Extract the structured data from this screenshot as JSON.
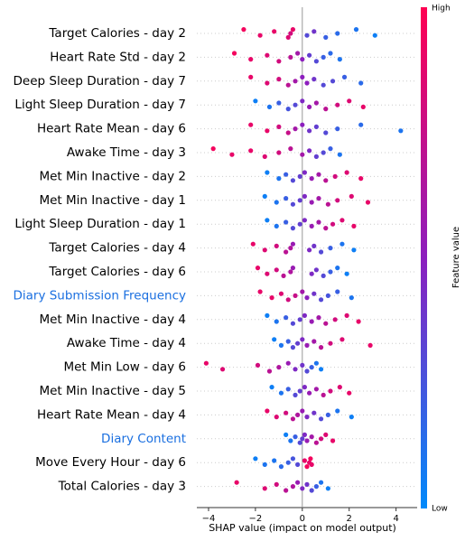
{
  "chart_data": {
    "type": "beeswarm",
    "xlabel": "SHAP value (impact on model output)",
    "colorbar_label": "Feature value",
    "colorbar_high": "High",
    "colorbar_low": "Low",
    "xlim": [
      -4.5,
      4.9
    ],
    "xticks": [
      {
        "value": -4,
        "label": "−4"
      },
      {
        "value": -2,
        "label": "−2"
      },
      0,
      2,
      4
    ],
    "series": [
      {
        "name": "Target Calories - day 2",
        "label_color": "#000000",
        "values": [
          -2.5,
          -1.8,
          -1.2,
          -0.6,
          -0.5,
          -0.4,
          0.2,
          0.5,
          1.0,
          1.5,
          2.3,
          3.1
        ],
        "feature_values": [
          0.95,
          0.9,
          0.9,
          0.85,
          0.8,
          0.9,
          0.3,
          0.4,
          0.2,
          0.15,
          0.1,
          0.05
        ]
      },
      {
        "name": "Heart Rate Std - day 2",
        "label_color": "#000000",
        "values": [
          -2.9,
          -2.2,
          -1.5,
          -1,
          -0.5,
          -0.2,
          0,
          0.3,
          0.6,
          0.9,
          1.2,
          1.6
        ],
        "feature_values": [
          0.95,
          0.9,
          0.85,
          0.8,
          0.7,
          0.6,
          0.5,
          0.35,
          0.3,
          0.2,
          0.15,
          0.1
        ]
      },
      {
        "name": "Deep Sleep Duration - day 7",
        "label_color": "#000000",
        "values": [
          -2.2,
          -1.5,
          -1,
          -0.6,
          -0.3,
          0,
          0.2,
          0.5,
          0.9,
          1.3,
          1.8,
          2.5
        ],
        "feature_values": [
          0.9,
          0.85,
          0.8,
          0.7,
          0.6,
          0.5,
          0.5,
          0.4,
          0.3,
          0.3,
          0.2,
          0.15
        ]
      },
      {
        "name": "Light Sleep Duration - day 7",
        "label_color": "#000000",
        "values": [
          -2,
          -1.4,
          -1,
          -0.6,
          -0.3,
          0,
          0.3,
          0.6,
          1,
          1.5,
          2,
          2.6
        ],
        "feature_values": [
          0.05,
          0.1,
          0.2,
          0.25,
          0.3,
          0.45,
          0.55,
          0.6,
          0.7,
          0.8,
          0.85,
          0.9
        ]
      },
      {
        "name": "Heart Rate Mean - day 6",
        "label_color": "#000000",
        "values": [
          -2.2,
          -1.5,
          -1,
          -0.6,
          -0.3,
          0,
          0.3,
          0.6,
          1,
          1.5,
          2.5,
          4.2
        ],
        "feature_values": [
          0.9,
          0.9,
          0.8,
          0.75,
          0.6,
          0.5,
          0.4,
          0.35,
          0.3,
          0.2,
          0.15,
          0.1
        ]
      },
      {
        "name": "Awake Time - day 3",
        "label_color": "#000000",
        "values": [
          -3.8,
          -3,
          -2.2,
          -1.6,
          -1,
          -0.5,
          0,
          0.3,
          0.6,
          0.9,
          1.2,
          1.6
        ],
        "feature_values": [
          0.95,
          0.9,
          0.9,
          0.85,
          0.8,
          0.7,
          0.6,
          0.45,
          0.35,
          0.3,
          0.2,
          0.1
        ]
      },
      {
        "name": "Met Min Inactive - day 2",
        "label_color": "#000000",
        "values": [
          -1.5,
          -1,
          -0.7,
          -0.4,
          -0.1,
          0.1,
          0.4,
          0.7,
          1,
          1.4,
          1.9,
          2.5
        ],
        "feature_values": [
          0.05,
          0.1,
          0.2,
          0.3,
          0.35,
          0.45,
          0.55,
          0.6,
          0.7,
          0.8,
          0.85,
          0.9
        ]
      },
      {
        "name": "Met Min Inactive - day 1",
        "label_color": "#000000",
        "values": [
          -1.6,
          -1.1,
          -0.7,
          -0.4,
          -0.1,
          0.1,
          0.4,
          0.7,
          1.1,
          1.5,
          2.1,
          2.8
        ],
        "feature_values": [
          0.05,
          0.1,
          0.2,
          0.3,
          0.35,
          0.45,
          0.55,
          0.6,
          0.7,
          0.8,
          0.85,
          0.9
        ]
      },
      {
        "name": "Light Sleep Duration - day 1",
        "label_color": "#000000",
        "values": [
          -1.5,
          -1.1,
          -0.7,
          -0.4,
          -0.1,
          0.1,
          0.4,
          0.7,
          1,
          1.3,
          1.7,
          2.2
        ],
        "feature_values": [
          0.05,
          0.1,
          0.2,
          0.3,
          0.35,
          0.45,
          0.55,
          0.6,
          0.7,
          0.8,
          0.85,
          0.9
        ]
      },
      {
        "name": "Target Calories - day 4",
        "label_color": "#000000",
        "values": [
          -2.1,
          -1.6,
          -1.1,
          -0.7,
          -0.5,
          -0.4,
          0.3,
          0.5,
          0.8,
          1.2,
          1.7,
          2.2
        ],
        "feature_values": [
          0.9,
          0.85,
          0.8,
          0.7,
          0.65,
          0.55,
          0.45,
          0.4,
          0.3,
          0.2,
          0.1,
          0.05
        ]
      },
      {
        "name": "Target Calories - day 6",
        "label_color": "#000000",
        "values": [
          -1.9,
          -1.5,
          -1.1,
          -0.8,
          -0.5,
          -0.4,
          0.4,
          0.6,
          0.9,
          1.2,
          1.5,
          1.9
        ],
        "feature_values": [
          0.9,
          0.85,
          0.8,
          0.7,
          0.65,
          0.55,
          0.45,
          0.4,
          0.3,
          0.2,
          0.1,
          0.05
        ]
      },
      {
        "name": "Diary Submission Frequency",
        "label_color": "#1a6fe0",
        "values": [
          -1.8,
          -1.3,
          -0.9,
          -0.6,
          -0.3,
          0,
          0.2,
          0.5,
          0.8,
          1.1,
          1.5,
          2.1
        ],
        "feature_values": [
          0.9,
          0.9,
          0.85,
          0.8,
          0.75,
          0.6,
          0.5,
          0.4,
          0.3,
          0.25,
          0.2,
          0.1
        ]
      },
      {
        "name": "Met Min Inactive - day 4",
        "label_color": "#000000",
        "values": [
          -1.5,
          -1.1,
          -0.7,
          -0.4,
          -0.1,
          0.1,
          0.4,
          0.7,
          1,
          1.4,
          1.9,
          2.4
        ],
        "feature_values": [
          0.05,
          0.1,
          0.2,
          0.3,
          0.35,
          0.45,
          0.55,
          0.6,
          0.7,
          0.8,
          0.85,
          0.9
        ]
      },
      {
        "name": "Awake Time - day 4",
        "label_color": "#000000",
        "values": [
          -1.2,
          -0.9,
          -0.6,
          -0.4,
          -0.2,
          0,
          0.2,
          0.5,
          0.8,
          1.2,
          1.7,
          2.9
        ],
        "feature_values": [
          0.05,
          0.1,
          0.2,
          0.3,
          0.35,
          0.45,
          0.55,
          0.6,
          0.7,
          0.8,
          0.85,
          0.9
        ]
      },
      {
        "name": "Met Min Low - day 6",
        "label_color": "#000000",
        "values": [
          -4.1,
          -3.4,
          -1.9,
          -1.4,
          -1,
          -0.6,
          -0.3,
          0,
          0.2,
          0.4,
          0.6,
          0.8
        ],
        "feature_values": [
          0.9,
          0.85,
          0.8,
          0.7,
          0.65,
          0.55,
          0.45,
          0.4,
          0.3,
          0.2,
          0.1,
          0.05
        ]
      },
      {
        "name": "Met Min Inactive - day 5",
        "label_color": "#000000",
        "values": [
          -1.3,
          -0.9,
          -0.6,
          -0.3,
          -0.1,
          0.1,
          0.3,
          0.6,
          0.9,
          1.2,
          1.6,
          2
        ],
        "feature_values": [
          0.05,
          0.1,
          0.2,
          0.3,
          0.35,
          0.45,
          0.55,
          0.6,
          0.7,
          0.8,
          0.85,
          0.9
        ]
      },
      {
        "name": "Heart Rate Mean - day 4",
        "label_color": "#000000",
        "values": [
          -1.5,
          -1.1,
          -0.7,
          -0.4,
          -0.2,
          0,
          0.2,
          0.5,
          0.8,
          1.1,
          1.5,
          2.1
        ],
        "feature_values": [
          0.9,
          0.85,
          0.8,
          0.7,
          0.65,
          0.55,
          0.45,
          0.4,
          0.3,
          0.2,
          0.1,
          0.05
        ]
      },
      {
        "name": "Diary Content",
        "label_color": "#1a6fe0",
        "values": [
          -0.7,
          -0.5,
          -0.3,
          -0.1,
          0,
          0.1,
          0.2,
          0.4,
          0.6,
          0.8,
          1,
          1.3
        ],
        "feature_values": [
          0.05,
          0.1,
          0.2,
          0.3,
          0.35,
          0.45,
          0.55,
          0.6,
          0.7,
          0.8,
          0.85,
          0.9
        ]
      },
      {
        "name": "Move Every Hour - day 6",
        "label_color": "#000000",
        "values": [
          -2,
          -1.6,
          -1.2,
          -0.9,
          -0.6,
          -0.4,
          -0.2,
          0.1,
          0.2,
          0.3,
          0.35,
          0.4
        ],
        "feature_values": [
          0.05,
          0.1,
          0.1,
          0.15,
          0.2,
          0.25,
          0.3,
          0.9,
          0.95,
          0.9,
          0.95,
          0.9
        ]
      },
      {
        "name": "Total Calories - day 3",
        "label_color": "#000000",
        "values": [
          -2.8,
          -1.6,
          -1.1,
          -0.7,
          -0.4,
          -0.2,
          0,
          0.2,
          0.4,
          0.6,
          0.8,
          1.1
        ],
        "feature_values": [
          0.9,
          0.85,
          0.8,
          0.7,
          0.65,
          0.55,
          0.45,
          0.4,
          0.3,
          0.2,
          0.1,
          0.05
        ]
      }
    ]
  }
}
